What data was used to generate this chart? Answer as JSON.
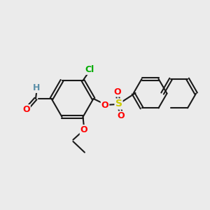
{
  "bg_color": "#ebebeb",
  "bond_color": "#1a1a1a",
  "bond_width": 1.5,
  "atom_colors": {
    "O": "#ff0000",
    "S": "#cccc00",
    "Cl": "#00aa00",
    "H": "#5b8fa8",
    "C": "#1a1a1a"
  },
  "font_size": 9,
  "naphthalene_font_size": 9,
  "dbo": 0.065
}
